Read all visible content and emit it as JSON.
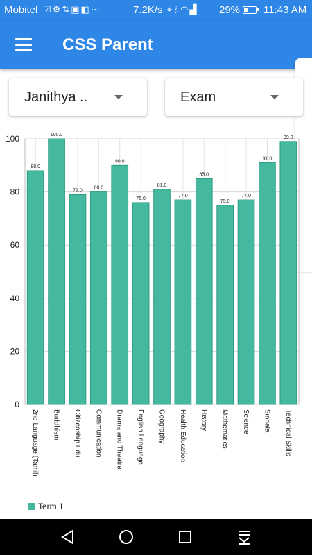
{
  "status_bar": {
    "carrier": "Mobitel",
    "notification_icons": [
      "check-icon",
      "settings-icon",
      "mobile-data-icon",
      "photo-icon",
      "location-box-icon",
      "more-icon"
    ],
    "net_speed": "7.2K/s",
    "system_icons": [
      "location-icon",
      "bluetooth-icon",
      "wifi-icon",
      "signal-icon"
    ],
    "battery_percent": "29%",
    "battery_level": 0.29,
    "time": "11:43 AM"
  },
  "app_bar": {
    "title": "CSS Parent",
    "menu_icon": "hamburger-menu-icon"
  },
  "filters": {
    "student": {
      "selected": "Janithya .."
    },
    "exam": {
      "selected": "Exam"
    }
  },
  "chart_data": {
    "type": "bar",
    "categories": [
      "2nd Language (Tamil)",
      "Buddhism",
      "Citizenship Edu",
      "Communication",
      "Drama and Theatre",
      "English Language",
      "Geography",
      "Health Education",
      "History",
      "Mathematics",
      "Science",
      "Sinhala",
      "Technical Skills"
    ],
    "series": [
      {
        "name": "Term 1",
        "values": [
          88,
          100,
          79,
          80,
          90,
          76,
          81,
          77,
          85,
          75,
          77,
          91,
          99
        ],
        "color": "#45b8a0"
      }
    ],
    "value_labels": [
      "88.0",
      "100.0",
      "79.0",
      "80.0",
      "90.0",
      "76.0",
      "81.0",
      "77.0",
      "85.0",
      "75.0",
      "77.0",
      "91.0",
      "99.0"
    ],
    "y_ticks": [
      "0",
      "20",
      "40",
      "60",
      "80",
      "100"
    ],
    "ylim": [
      0,
      100
    ],
    "grid": true,
    "legend": "bottom-left"
  },
  "nav_bar": {
    "back_icon": "back-triangle-icon",
    "home_icon": "home-circle-icon",
    "recents_icon": "recents-square-icon",
    "notifications_icon": "pull-down-notifications-icon"
  }
}
